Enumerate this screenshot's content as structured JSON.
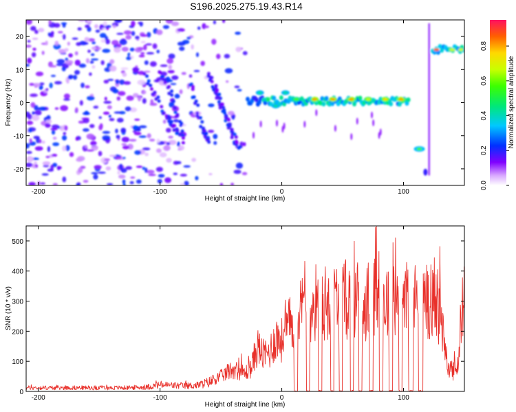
{
  "title": "S196.2025.275.19.43.R14",
  "chart_data": [
    {
      "type": "heatmap",
      "xlabel": "Height of straight line (km)",
      "ylabel": "Frequency (Hz)",
      "xlim": [
        -210,
        150
      ],
      "ylim": [
        -25,
        25
      ],
      "xticks": [
        -200,
        -100,
        0,
        100
      ],
      "xtick_labels": [
        "-200",
        "-100",
        "0",
        "100"
      ],
      "yticks": [
        -20,
        -10,
        0,
        10,
        20
      ],
      "ytick_labels": [
        "-20",
        "-10",
        "0",
        "10",
        "20"
      ],
      "colorbar": {
        "label": "Normalized spectral amplitude",
        "range": [
          0,
          0.95
        ],
        "ticks": [
          0,
          0.2,
          0.4,
          0.6,
          0.8
        ],
        "tick_labels": [
          "0.0",
          "0.2",
          "0.4",
          "0.6",
          "0.8"
        ]
      },
      "features": [
        {
          "name": "carrier trace",
          "x_range": [
            -20,
            105
          ],
          "freq": 1,
          "peak": 0.9
        },
        {
          "name": "low sideband",
          "x_range": [
            108,
            118
          ],
          "freq": -14,
          "peak": 0.6
        },
        {
          "name": "high sideband",
          "x_range": [
            123,
            150
          ],
          "freq": 16,
          "peak": 0.9
        },
        {
          "name": "noise region",
          "x_range": [
            -210,
            -35
          ],
          "freq_range": [
            -25,
            25
          ],
          "peak": 0.25
        }
      ]
    },
    {
      "type": "line",
      "xlabel": "Height of straight line (km)",
      "ylabel": "SNR (10 * v/v)",
      "xlim": [
        -210,
        150
      ],
      "ylim": [
        0,
        550
      ],
      "xticks": [
        -200,
        -100,
        0,
        100
      ],
      "xtick_labels": [
        "-200",
        "-100",
        "0",
        "100"
      ],
      "yticks": [
        0,
        100,
        200,
        300,
        400,
        500
      ],
      "ytick_labels": [
        "0",
        "100",
        "200",
        "300",
        "400",
        "500"
      ],
      "series": [
        {
          "name": "SNR",
          "color": "#e8302a",
          "x": [
            -210,
            -190,
            -170,
            -150,
            -130,
            -110,
            -100,
            -90,
            -80,
            -70,
            -60,
            -50,
            -40,
            -30,
            -25,
            -20,
            -15,
            -10,
            -5,
            0,
            5,
            10,
            15,
            20,
            25,
            30,
            35,
            40,
            45,
            50,
            55,
            60,
            65,
            70,
            75,
            80,
            85,
            90,
            95,
            100,
            105,
            110,
            115,
            120,
            125,
            130,
            135,
            140,
            145,
            150
          ],
          "values": [
            12,
            12,
            12,
            12,
            12,
            14,
            22,
            20,
            18,
            20,
            30,
            50,
            75,
            60,
            80,
            150,
            120,
            130,
            180,
            170,
            210,
            240,
            260,
            280,
            290,
            300,
            290,
            310,
            300,
            300,
            310,
            300,
            290,
            300,
            340,
            310,
            300,
            310,
            300,
            300,
            300,
            300,
            300,
            310,
            300,
            280,
            100,
            60,
            100,
            350
          ]
        }
      ],
      "dropouts": [
        [
          10,
          13
        ],
        [
          20,
          23
        ],
        [
          30,
          33
        ],
        [
          40,
          43
        ],
        [
          47,
          50
        ],
        [
          56,
          59
        ],
        [
          63,
          66
        ],
        [
          72,
          75
        ],
        [
          80,
          83
        ],
        [
          88,
          91
        ],
        [
          96,
          99
        ],
        [
          104,
          108
        ],
        [
          112,
          116
        ]
      ],
      "peak": {
        "x": 77,
        "value": 545
      }
    }
  ]
}
